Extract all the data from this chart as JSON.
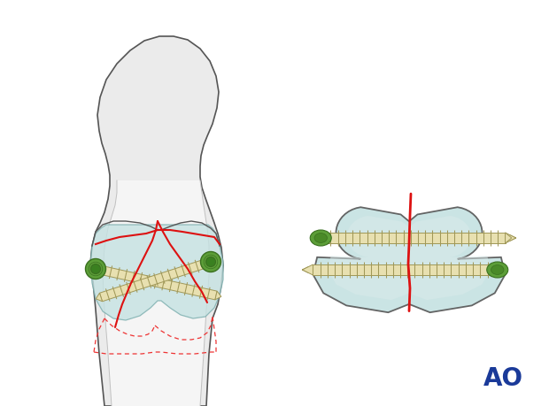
{
  "bg_color": "#ffffff",
  "bone_fill": "#ebebeb",
  "bone_fill2": "#d8d8d8",
  "bone_outline": "#555555",
  "bone_inner": "#f5f5f5",
  "cartilage_fill": "#c5e2e2",
  "cartilage_outline": "#7aadad",
  "screw_fill": "#e8e0b0",
  "screw_outline": "#a09858",
  "green_color": "#5c9e38",
  "green_dark": "#3a7020",
  "red_fracture": "#dd1111",
  "red_dotted": "#ee3333",
  "ao_color": "#1a3a99",
  "fig_width": 6.2,
  "fig_height": 4.59
}
